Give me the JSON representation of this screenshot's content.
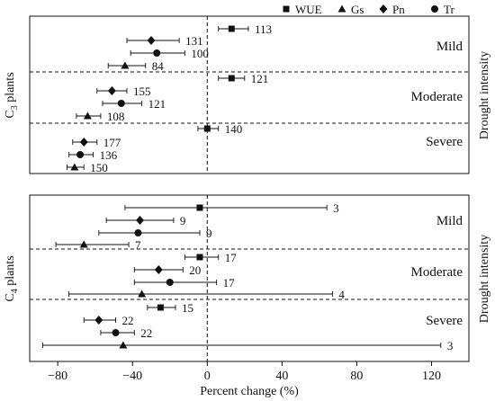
{
  "legend": {
    "items": [
      {
        "marker": "square",
        "label": "WUE"
      },
      {
        "marker": "triangle",
        "label": "Gs"
      },
      {
        "marker": "diamond",
        "label": "Pn"
      },
      {
        "marker": "circle",
        "label": "Tr"
      }
    ]
  },
  "chart_data": {
    "type": "scatter",
    "xlabel": "Percent change (%)",
    "xlim": [
      -95,
      140
    ],
    "xticks": [
      -80,
      -40,
      0,
      40,
      80,
      120
    ],
    "right_axis_label": "Drought intensity",
    "panels": [
      {
        "ylabel_main": "C",
        "ylabel_sub": "3",
        "ylabel_tail": " plants",
        "groups": [
          {
            "label": "Mild",
            "points": [
              {
                "metric": "WUE",
                "value": 13,
                "ci": [
                  6,
                  22
                ],
                "n": "113"
              },
              {
                "metric": "Pn",
                "value": -30,
                "ci": [
                  -43,
                  -15
                ],
                "n": "131"
              },
              {
                "metric": "Tr",
                "value": -27,
                "ci": [
                  -41,
                  -12
                ],
                "n": "100"
              },
              {
                "metric": "Gs",
                "value": -44,
                "ci": [
                  -53,
                  -33
                ],
                "n": "84"
              }
            ]
          },
          {
            "label": "Moderate",
            "points": [
              {
                "metric": "WUE",
                "value": 13,
                "ci": [
                  6,
                  20
                ],
                "n": "121"
              },
              {
                "metric": "Pn",
                "value": -51,
                "ci": [
                  -59,
                  -43
                ],
                "n": "155"
              },
              {
                "metric": "Tr",
                "value": -46,
                "ci": [
                  -56,
                  -35
                ],
                "n": "121"
              },
              {
                "metric": "Gs",
                "value": -64,
                "ci": [
                  -70,
                  -57
                ],
                "n": "108"
              }
            ]
          },
          {
            "label": "Severe",
            "points": [
              {
                "metric": "WUE",
                "value": 0,
                "ci": [
                  -5,
                  6
                ],
                "n": "140"
              },
              {
                "metric": "Pn",
                "value": -66,
                "ci": [
                  -72,
                  -59
                ],
                "n": "177"
              },
              {
                "metric": "Tr",
                "value": -68,
                "ci": [
                  -74,
                  -61
                ],
                "n": "136"
              },
              {
                "metric": "Gs",
                "value": -71,
                "ci": [
                  -75,
                  -66
                ],
                "n": "150"
              }
            ]
          }
        ]
      },
      {
        "ylabel_main": "C",
        "ylabel_sub": "4",
        "ylabel_tail": " plants",
        "groups": [
          {
            "label": "Mild",
            "points": [
              {
                "metric": "WUE",
                "value": -4,
                "ci": [
                  -44,
                  64
                ],
                "n": "3"
              },
              {
                "metric": "Pn",
                "value": -36,
                "ci": [
                  -54,
                  -18
                ],
                "n": "9"
              },
              {
                "metric": "Tr",
                "value": -37,
                "ci": [
                  -58,
                  -4
                ],
                "n": "9"
              },
              {
                "metric": "Gs",
                "value": -66,
                "ci": [
                  -81,
                  -42
                ],
                "n": "7"
              }
            ]
          },
          {
            "label": "Moderate",
            "points": [
              {
                "metric": "WUE",
                "value": -4,
                "ci": [
                  -12,
                  6
                ],
                "n": "17"
              },
              {
                "metric": "Pn",
                "value": -26,
                "ci": [
                  -39,
                  -13
                ],
                "n": "20"
              },
              {
                "metric": "Tr",
                "value": -20,
                "ci": [
                  -39,
                  5
                ],
                "n": "17"
              },
              {
                "metric": "Gs",
                "value": -35,
                "ci": [
                  -74,
                  67
                ],
                "n": "4"
              }
            ]
          },
          {
            "label": "Severe",
            "points": [
              {
                "metric": "WUE",
                "value": -25,
                "ci": [
                  -32,
                  -17
                ],
                "n": "15"
              },
              {
                "metric": "Pn",
                "value": -58,
                "ci": [
                  -66,
                  -49
                ],
                "n": "22"
              },
              {
                "metric": "Tr",
                "value": -49,
                "ci": [
                  -57,
                  -39
                ],
                "n": "22"
              },
              {
                "metric": "Gs",
                "value": -45,
                "ci": [
                  -88,
                  125
                ],
                "n": "3"
              }
            ]
          }
        ]
      }
    ]
  }
}
